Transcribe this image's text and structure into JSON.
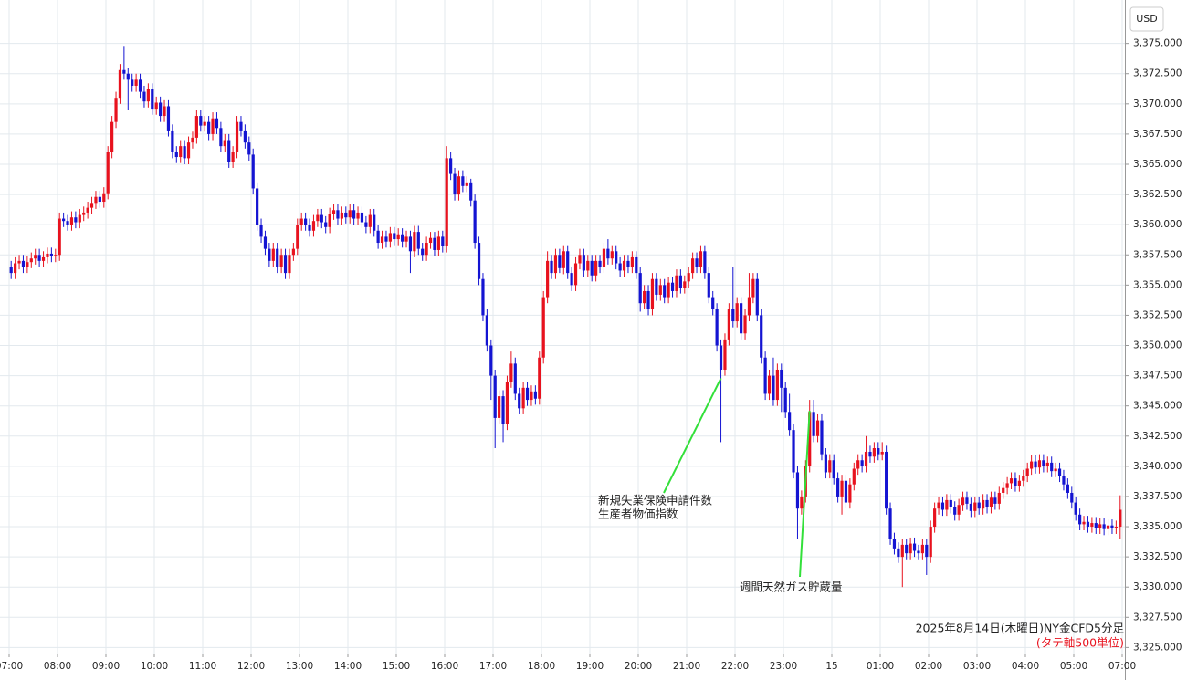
{
  "chart_data": {
    "type": "candlestick",
    "y_axis_label": "USD",
    "caption": "2025年8月14日(木曜日)NY金CFD5分足",
    "note": "(タテ軸500単位)",
    "annotations": [
      "新規失業保険申請件数",
      "生産者物価指数",
      "週間天然ガス貯蔵量"
    ],
    "up_color": "#e8121e",
    "down_color": "#1414d2",
    "note_color": "#e8121e",
    "annotation_color": "#33e03a",
    "grid": true,
    "ylim": [
      3324.5,
      3378.6
    ],
    "yticks": [
      {
        "value": 3325,
        "label": "3,325.000"
      },
      {
        "value": 3327.5,
        "label": "3,327.500"
      },
      {
        "value": 3330,
        "label": "3,330.000"
      },
      {
        "value": 3332.5,
        "label": "3,332.500"
      },
      {
        "value": 3335,
        "label": "3,335.000"
      },
      {
        "value": 3337.5,
        "label": "3,337.500"
      },
      {
        "value": 3340,
        "label": "3,340.000"
      },
      {
        "value": 3342.5,
        "label": "3,342.500"
      },
      {
        "value": 3345,
        "label": "3,345.000"
      },
      {
        "value": 3347.5,
        "label": "3,347.500"
      },
      {
        "value": 3350,
        "label": "3,350.000"
      },
      {
        "value": 3352.5,
        "label": "3,352.500"
      },
      {
        "value": 3355,
        "label": "3,355.000"
      },
      {
        "value": 3357.5,
        "label": "3,357.500"
      },
      {
        "value": 3360,
        "label": "3,360.000"
      },
      {
        "value": 3362.5,
        "label": "3,362.500"
      },
      {
        "value": 3365,
        "label": "3,365.000"
      },
      {
        "value": 3367.5,
        "label": "3,367.500"
      },
      {
        "value": 3370,
        "label": "3,370.000"
      },
      {
        "value": 3372.5,
        "label": "3,372.500"
      },
      {
        "value": 3375,
        "label": "3,375.000"
      }
    ],
    "x_tick_labels": [
      "07:00",
      "08:00",
      "09:00",
      "10:00",
      "11:00",
      "12:00",
      "13:00",
      "14:00",
      "15:00",
      "16:00",
      "17:00",
      "18:00",
      "19:00",
      "20:00",
      "21:00",
      "22:00",
      "23:00",
      "15",
      "01:00",
      "02:00",
      "03:00",
      "04:00",
      "05:00",
      "07:00"
    ],
    "open": [
      3356.5,
      3356.0,
      3356.8,
      3357.0,
      3356.5,
      3356.9,
      3357.2,
      3357.5,
      3357.0,
      3357.3,
      3357.6,
      3357.4,
      3357.5,
      3360.5,
      3360.3,
      3360.0,
      3360.6,
      3360.2,
      3360.8,
      3361.0,
      3361.4,
      3361.8,
      3362.3,
      3361.9,
      3362.6,
      3366.0,
      3368.5,
      3370.5,
      3372.8,
      3372.5,
      3372.0,
      3371.5,
      3372.0,
      3371.0,
      3370.2,
      3371.2,
      3369.6,
      3370.1,
      3369.0,
      3369.8,
      3367.8,
      3366.0,
      3365.6,
      3366.5,
      3365.5,
      3366.8,
      3367.2,
      3369.0,
      3368.2,
      3368.5,
      3367.5,
      3368.8,
      3368.0,
      3366.5,
      3367.0,
      3365.2,
      3366.0,
      3368.5,
      3367.8,
      3366.8,
      3365.8,
      3363.0,
      3360.0,
      3359.0,
      3358.0,
      3357.0,
      3358.0,
      3356.5,
      3357.5,
      3356.0,
      3357.5,
      3358.0,
      3360.0,
      3360.5,
      3360.0,
      3359.5,
      3360.3,
      3360.8,
      3360.2,
      3359.8,
      3360.9,
      3361.2,
      3360.5,
      3361.0,
      3360.6,
      3361.2,
      3360.5,
      3361.0,
      3360.2,
      3359.8,
      3360.8,
      3359.5,
      3358.5,
      3359.0,
      3358.6,
      3359.3,
      3358.8,
      3359.2,
      3358.6,
      3359.0,
      3357.8,
      3359.4,
      3358.0,
      3357.5,
      3358.5,
      3358.9,
      3357.9,
      3359.0,
      3358.2,
      3365.5,
      3364.2,
      3362.5,
      3364.0,
      3363.2,
      3363.5,
      3362.0,
      3358.5,
      3355.5,
      3352.5,
      3350.0,
      3347.5,
      3344.0,
      3345.8,
      3343.5,
      3347.0,
      3348.5,
      3346.0,
      3344.8,
      3346.5,
      3345.5,
      3346.2,
      3345.6,
      3349.0,
      3354.0,
      3357.0,
      3356.0,
      3357.5,
      3356.4,
      3357.8,
      3356.0,
      3355.0,
      3356.8,
      3357.5,
      3356.2,
      3357.0,
      3355.8,
      3357.0,
      3356.5,
      3358.0,
      3357.2,
      3357.8,
      3356.8,
      3356.2,
      3357.0,
      3356.5,
      3357.3,
      3356.0,
      3353.5,
      3354.5,
      3353.0,
      3355.5,
      3354.2,
      3355.0,
      3354.0,
      3355.2,
      3354.5,
      3355.8,
      3354.8,
      3355.3,
      3356.0,
      3357.2,
      3356.5,
      3357.8,
      3356.0,
      3354.0,
      3353.0,
      3350.0,
      3348.0,
      3350.5,
      3353.0,
      3352.0,
      3353.5,
      3351.0,
      3352.5,
      3354.0,
      3355.5,
      3352.5,
      3349.0,
      3346.0,
      3347.5,
      3345.5,
      3348.0,
      3346.5,
      3344.5,
      3343.0,
      3339.5,
      3336.5,
      3337.5,
      3340.0,
      3344.5,
      3342.5,
      3343.8,
      3341.0,
      3339.5,
      3340.5,
      3339.0,
      3337.5,
      3338.8,
      3337.0,
      3338.5,
      3339.8,
      3340.5,
      3340.0,
      3341.2,
      3340.8,
      3341.5,
      3341.0,
      3341.2,
      3336.5,
      3334.0,
      3333.2,
      3332.5,
      3333.5,
      3332.8,
      3333.6,
      3333.0,
      3332.8,
      3333.5,
      3332.5,
      3335.0,
      3336.5,
      3337.0,
      3336.4,
      3337.2,
      3336.6,
      3336.0,
      3336.8,
      3337.4,
      3336.9,
      3336.3,
      3337.0,
      3336.5,
      3337.2,
      3336.6,
      3337.4,
      3336.9,
      3337.8,
      3338.2,
      3338.6,
      3339.0,
      3338.4,
      3338.8,
      3339.2,
      3339.8,
      3340.4,
      3339.9,
      3340.5,
      3340.0,
      3340.3,
      3339.6,
      3339.8,
      3339.2,
      3338.5,
      3337.8,
      3337.0,
      3336.0,
      3335.2,
      3335.4,
      3335.0,
      3335.3,
      3334.9,
      3335.2,
      3334.8,
      3335.1,
      3334.9,
      3335.0
    ],
    "high": [
      3357.0,
      3357.3,
      3357.5,
      3357.5,
      3357.4,
      3357.7,
      3358.0,
      3358.0,
      3357.8,
      3358.1,
      3358.1,
      3358.0,
      3361.0,
      3361.0,
      3360.8,
      3361.1,
      3361.1,
      3361.3,
      3361.5,
      3361.9,
      3362.3,
      3362.8,
      3362.8,
      3363.1,
      3366.5,
      3369.0,
      3371.0,
      3373.3,
      3374.8,
      3373.0,
      3372.5,
      3372.5,
      3372.5,
      3371.5,
      3371.7,
      3371.7,
      3370.6,
      3370.6,
      3370.3,
      3370.3,
      3368.3,
      3366.5,
      3367.0,
      3367.0,
      3367.3,
      3367.7,
      3369.5,
      3369.5,
      3369.0,
      3369.0,
      3369.3,
      3369.3,
      3368.5,
      3367.5,
      3367.5,
      3366.5,
      3369.0,
      3369.0,
      3368.3,
      3367.3,
      3366.3,
      3363.5,
      3360.5,
      3359.5,
      3358.5,
      3358.5,
      3358.5,
      3358.0,
      3358.0,
      3358.0,
      3358.5,
      3360.5,
      3361.0,
      3361.0,
      3360.5,
      3360.8,
      3361.3,
      3361.3,
      3360.7,
      3361.4,
      3361.7,
      3361.7,
      3361.5,
      3361.5,
      3361.7,
      3361.7,
      3361.5,
      3361.5,
      3360.7,
      3361.3,
      3361.3,
      3360.0,
      3359.5,
      3359.5,
      3359.8,
      3359.8,
      3359.7,
      3359.7,
      3359.5,
      3359.5,
      3359.9,
      3359.9,
      3358.5,
      3359.0,
      3359.4,
      3359.4,
      3359.5,
      3359.5,
      3366.5,
      3366.0,
      3364.7,
      3364.5,
      3364.5,
      3364.0,
      3363.8,
      3362.5,
      3359.0,
      3356.0,
      3353.0,
      3350.5,
      3348.0,
      3346.3,
      3346.3,
      3347.5,
      3349.5,
      3349.0,
      3346.5,
      3347.0,
      3347.0,
      3346.7,
      3346.7,
      3349.5,
      3354.5,
      3357.8,
      3357.5,
      3358.0,
      3358.0,
      3358.3,
      3358.3,
      3356.5,
      3357.3,
      3358.0,
      3358.0,
      3357.5,
      3357.5,
      3357.5,
      3357.5,
      3358.5,
      3358.8,
      3358.3,
      3358.3,
      3357.3,
      3357.5,
      3357.5,
      3357.8,
      3357.8,
      3356.5,
      3355.0,
      3355.0,
      3356.0,
      3356.0,
      3355.5,
      3355.5,
      3355.7,
      3355.7,
      3356.3,
      3356.3,
      3355.8,
      3356.5,
      3357.7,
      3357.7,
      3358.3,
      3358.3,
      3356.5,
      3354.5,
      3353.5,
      3350.5,
      3351.0,
      3353.5,
      3356.5,
      3354.0,
      3354.0,
      3353.0,
      3356.0,
      3356.0,
      3356.0,
      3353.0,
      3349.5,
      3348.0,
      3349.0,
      3348.5,
      3348.5,
      3347.0,
      3346.0,
      3343.5,
      3340.0,
      3338.0,
      3340.5,
      3345.5,
      3345.5,
      3344.3,
      3344.3,
      3341.5,
      3341.0,
      3341.0,
      3339.5,
      3339.3,
      3339.3,
      3339.0,
      3340.3,
      3341.0,
      3341.0,
      3342.5,
      3341.7,
      3342.0,
      3342.0,
      3342.0,
      3341.7,
      3337.0,
      3334.5,
      3333.7,
      3334.0,
      3334.0,
      3334.1,
      3334.1,
      3333.5,
      3334.0,
      3334.0,
      3335.5,
      3337.0,
      3337.5,
      3337.5,
      3337.7,
      3337.7,
      3337.1,
      3337.3,
      3337.9,
      3337.9,
      3337.4,
      3337.5,
      3337.5,
      3337.7,
      3337.7,
      3337.9,
      3337.9,
      3338.3,
      3338.7,
      3339.1,
      3339.5,
      3339.5,
      3339.3,
      3339.7,
      3340.3,
      3340.9,
      3340.9,
      3341.0,
      3341.0,
      3340.8,
      3340.8,
      3340.3,
      3340.3,
      3339.7,
      3339.0,
      3338.3,
      3337.5,
      3336.5,
      3335.9,
      3335.9,
      3335.8,
      3335.8,
      3335.7,
      3335.7,
      3335.6,
      3335.6,
      3335.5,
      3337.6
    ],
    "low": [
      3355.5,
      3355.5,
      3356.3,
      3356.0,
      3356.0,
      3356.4,
      3356.7,
      3356.5,
      3356.5,
      3356.8,
      3356.9,
      3356.9,
      3357.0,
      3359.8,
      3359.5,
      3359.5,
      3359.7,
      3359.7,
      3360.3,
      3360.5,
      3360.9,
      3361.3,
      3361.4,
      3361.4,
      3362.1,
      3365.5,
      3368.0,
      3370.0,
      3372.0,
      3369.5,
      3371.0,
      3371.0,
      3370.5,
      3369.7,
      3369.7,
      3369.1,
      3369.1,
      3368.5,
      3368.5,
      3367.3,
      3365.5,
      3365.1,
      3365.1,
      3365.0,
      3365.0,
      3366.3,
      3366.7,
      3367.7,
      3367.7,
      3367.0,
      3367.0,
      3367.5,
      3366.0,
      3366.0,
      3364.7,
      3364.7,
      3365.5,
      3367.3,
      3366.3,
      3365.3,
      3362.5,
      3359.5,
      3358.5,
      3357.5,
      3356.5,
      3356.5,
      3356.0,
      3356.0,
      3355.5,
      3355.5,
      3357.0,
      3357.5,
      3359.5,
      3359.5,
      3359.0,
      3359.0,
      3359.8,
      3359.7,
      3359.3,
      3359.3,
      3360.4,
      3360.0,
      3360.0,
      3360.1,
      3360.1,
      3360.0,
      3360.0,
      3359.7,
      3359.3,
      3359.3,
      3359.0,
      3358.0,
      3358.0,
      3358.1,
      3358.1,
      3358.3,
      3358.3,
      3358.1,
      3358.1,
      3356.0,
      3357.3,
      3357.5,
      3357.0,
      3357.0,
      3358.0,
      3357.4,
      3357.4,
      3357.7,
      3357.7,
      3363.7,
      3362.0,
      3362.0,
      3362.7,
      3362.7,
      3361.5,
      3358.0,
      3355.0,
      3352.0,
      3349.5,
      3345.5,
      3341.5,
      3343.5,
      3342.0,
      3343.0,
      3346.5,
      3345.5,
      3344.3,
      3344.3,
      3345.0,
      3345.0,
      3345.1,
      3345.1,
      3348.5,
      3353.5,
      3355.5,
      3355.5,
      3356.0,
      3355.9,
      3355.5,
      3354.5,
      3354.5,
      3356.3,
      3355.7,
      3355.7,
      3355.3,
      3355.3,
      3356.0,
      3356.0,
      3356.7,
      3356.7,
      3356.3,
      3355.7,
      3355.7,
      3356.0,
      3356.0,
      3355.5,
      3352.8,
      3353.0,
      3352.5,
      3352.5,
      3353.7,
      3353.7,
      3353.5,
      3353.5,
      3354.0,
      3354.0,
      3354.3,
      3354.3,
      3354.8,
      3355.5,
      3356.0,
      3356.0,
      3355.5,
      3353.5,
      3352.5,
      3349.5,
      3342.0,
      3347.5,
      3350.0,
      3351.5,
      3351.5,
      3350.5,
      3350.5,
      3352.0,
      3353.5,
      3352.0,
      3348.5,
      3345.5,
      3345.5,
      3345.0,
      3345.0,
      3344.5,
      3344.0,
      3342.5,
      3339.0,
      3334.0,
      3336.0,
      3337.0,
      3339.5,
      3342.0,
      3342.0,
      3340.5,
      3339.0,
      3339.0,
      3338.5,
      3337.0,
      3336.0,
      3336.5,
      3336.5,
      3338.0,
      3339.3,
      3339.5,
      3339.5,
      3340.3,
      3340.3,
      3340.5,
      3340.5,
      3336.0,
      3333.5,
      3332.7,
      3332.0,
      3330.0,
      3332.3,
      3332.3,
      3332.5,
      3332.3,
      3332.3,
      3331.0,
      3332.0,
      3334.5,
      3336.0,
      3335.9,
      3335.9,
      3336.1,
      3335.5,
      3335.5,
      3336.3,
      3336.4,
      3335.8,
      3335.8,
      3336.0,
      3336.0,
      3336.1,
      3336.1,
      3336.4,
      3336.4,
      3337.3,
      3337.7,
      3338.1,
      3337.9,
      3337.9,
      3338.3,
      3338.7,
      3339.3,
      3339.4,
      3339.4,
      3339.5,
      3339.5,
      3339.1,
      3339.1,
      3338.7,
      3338.0,
      3337.3,
      3336.5,
      3335.5,
      3334.7,
      3334.7,
      3334.5,
      3334.5,
      3334.4,
      3334.4,
      3334.3,
      3334.3,
      3334.4,
      3334.4,
      3334.0
    ],
    "close": [
      3356.0,
      3356.8,
      3357.0,
      3356.5,
      3356.9,
      3357.2,
      3357.5,
      3357.0,
      3357.3,
      3357.6,
      3357.4,
      3357.5,
      3360.5,
      3360.3,
      3360.0,
      3360.6,
      3360.2,
      3360.8,
      3361.0,
      3361.4,
      3361.8,
      3362.3,
      3361.9,
      3362.6,
      3366.0,
      3368.5,
      3370.5,
      3372.8,
      3372.5,
      3372.0,
      3371.5,
      3372.0,
      3371.0,
      3370.2,
      3371.2,
      3369.6,
      3370.1,
      3369.0,
      3369.8,
      3367.8,
      3366.0,
      3365.6,
      3366.5,
      3365.5,
      3366.8,
      3367.2,
      3369.0,
      3368.2,
      3368.5,
      3367.5,
      3368.8,
      3368.0,
      3366.5,
      3367.0,
      3365.2,
      3366.0,
      3368.5,
      3367.8,
      3366.8,
      3365.8,
      3363.0,
      3360.0,
      3359.0,
      3358.0,
      3357.0,
      3358.0,
      3356.5,
      3357.5,
      3356.0,
      3357.5,
      3358.0,
      3360.0,
      3360.5,
      3360.0,
      3359.5,
      3360.3,
      3360.8,
      3360.2,
      3359.8,
      3360.9,
      3361.2,
      3360.5,
      3361.0,
      3360.6,
      3361.2,
      3360.5,
      3361.0,
      3360.2,
      3359.8,
      3360.8,
      3359.5,
      3358.5,
      3359.0,
      3358.6,
      3359.3,
      3358.8,
      3359.2,
      3358.6,
      3359.0,
      3357.8,
      3359.4,
      3358.0,
      3357.5,
      3358.5,
      3358.9,
      3357.9,
      3359.0,
      3358.2,
      3365.5,
      3364.2,
      3362.5,
      3364.0,
      3363.2,
      3363.5,
      3362.0,
      3358.5,
      3355.5,
      3352.5,
      3350.0,
      3347.5,
      3344.0,
      3345.8,
      3343.5,
      3347.0,
      3348.5,
      3346.0,
      3344.8,
      3346.5,
      3345.5,
      3346.2,
      3345.6,
      3349.0,
      3354.0,
      3357.0,
      3356.0,
      3357.5,
      3356.4,
      3357.8,
      3356.0,
      3355.0,
      3356.8,
      3357.5,
      3356.2,
      3357.0,
      3355.8,
      3357.0,
      3356.5,
      3358.0,
      3357.2,
      3357.8,
      3356.8,
      3356.2,
      3357.0,
      3356.5,
      3357.3,
      3356.0,
      3353.5,
      3354.5,
      3353.0,
      3355.5,
      3354.2,
      3355.0,
      3354.0,
      3355.2,
      3354.5,
      3355.8,
      3354.8,
      3355.3,
      3356.0,
      3357.2,
      3356.5,
      3357.8,
      3356.0,
      3354.0,
      3353.0,
      3350.0,
      3348.0,
      3350.5,
      3353.0,
      3352.0,
      3353.5,
      3351.0,
      3352.5,
      3354.0,
      3355.5,
      3352.5,
      3349.0,
      3346.0,
      3347.5,
      3345.5,
      3348.0,
      3346.5,
      3344.5,
      3343.0,
      3339.5,
      3336.5,
      3337.5,
      3340.0,
      3344.5,
      3342.5,
      3343.8,
      3341.0,
      3339.5,
      3340.5,
      3339.0,
      3337.5,
      3338.8,
      3337.0,
      3338.5,
      3339.8,
      3340.5,
      3340.0,
      3341.2,
      3340.8,
      3341.5,
      3341.0,
      3341.2,
      3336.5,
      3334.0,
      3333.2,
      3332.5,
      3333.5,
      3332.8,
      3333.6,
      3333.0,
      3332.8,
      3333.5,
      3332.5,
      3335.0,
      3336.5,
      3337.0,
      3336.4,
      3337.2,
      3336.6,
      3336.0,
      3336.8,
      3337.4,
      3336.9,
      3336.3,
      3337.0,
      3336.5,
      3337.2,
      3336.6,
      3337.4,
      3336.9,
      3337.8,
      3338.2,
      3338.6,
      3339.0,
      3338.4,
      3338.8,
      3339.2,
      3339.8,
      3340.4,
      3339.9,
      3340.5,
      3340.0,
      3340.3,
      3339.6,
      3339.8,
      3339.2,
      3338.5,
      3337.8,
      3337.0,
      3336.0,
      3335.2,
      3335.4,
      3335.0,
      3335.3,
      3334.9,
      3335.2,
      3334.8,
      3335.1,
      3334.9,
      3335.0,
      3336.4
    ]
  }
}
